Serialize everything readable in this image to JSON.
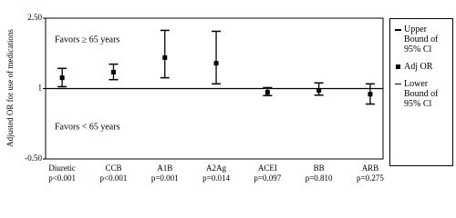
{
  "chart_data": {
    "type": "errorbar",
    "y_label": "Adjusted OR for use of medications",
    "categories": [
      "Diuretic",
      "CCB",
      "A1B",
      "A2Ag",
      "ACEI",
      "BB",
      "ARB"
    ],
    "p_values": [
      "p<0.001",
      "p<0.001",
      "p=0.001",
      "p=0.014",
      "p=0.097",
      "p=0.810",
      "p=0.275"
    ],
    "series": [
      {
        "name": "Upper Bound of 95% Cl",
        "color": "#000000",
        "values": [
          1.43,
          1.52,
          2.24,
          2.22,
          1.02,
          1.12,
          1.1
        ]
      },
      {
        "name": "Adj OR",
        "color": "#000000",
        "values": [
          1.23,
          1.35,
          1.66,
          1.54,
          0.92,
          0.96,
          0.88
        ]
      },
      {
        "name": "Lower Bound of 95% Cl",
        "color": "#000000",
        "values": [
          1.04,
          1.19,
          1.23,
          1.1,
          0.85,
          0.86,
          0.67
        ]
      }
    ],
    "annotations": [
      "Favors ≥ 65 years",
      "Favors < 65 years"
    ],
    "reference_line": 1,
    "ylim": [
      -0.5,
      2.5
    ],
    "yticks": [
      {
        "value": -0.5,
        "label": "-0.50"
      },
      1,
      {
        "value": 2.5,
        "label": "2.50"
      }
    ],
    "legend": "right"
  }
}
